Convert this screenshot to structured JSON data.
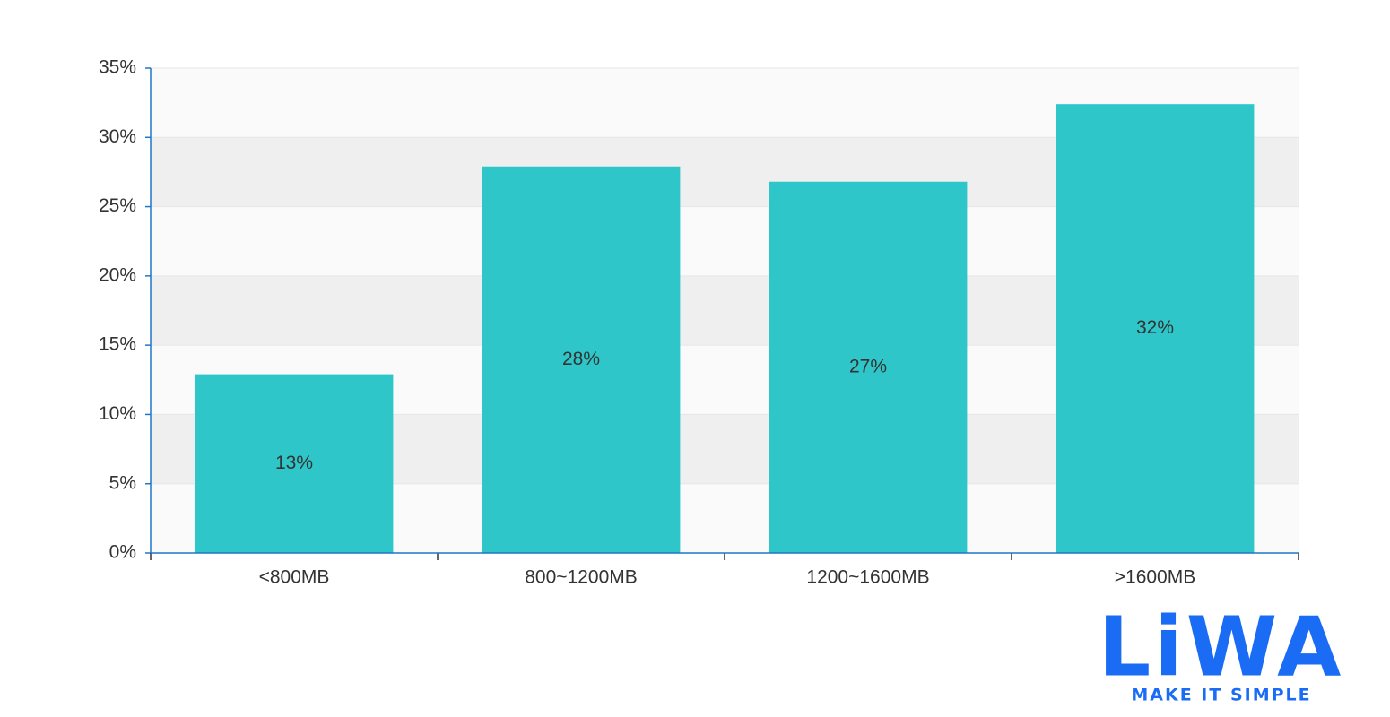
{
  "chart_data": {
    "type": "bar",
    "categories": [
      "<800MB",
      "800~1200MB",
      "1200~1600MB",
      ">1600MB"
    ],
    "values": [
      12.9,
      27.9,
      26.8,
      32.4
    ],
    "value_labels": [
      "13%",
      "28%",
      "27%",
      "32%"
    ],
    "color": "#2ec6c8",
    "ylim": [
      0,
      35
    ],
    "yticks": [
      {
        "value": 0,
        "label": "0%"
      },
      {
        "value": 5,
        "label": "5%"
      },
      {
        "value": 10,
        "label": "10%"
      },
      {
        "value": 15,
        "label": "15%"
      },
      {
        "value": 20,
        "label": "20%"
      },
      {
        "value": 25,
        "label": "25%"
      },
      {
        "value": 30,
        "label": "30%"
      },
      {
        "value": 35,
        "label": "35%"
      }
    ],
    "grid": true
  },
  "logo": {
    "text": "LiWA",
    "tagline": "MAKE IT SIMPLE"
  }
}
